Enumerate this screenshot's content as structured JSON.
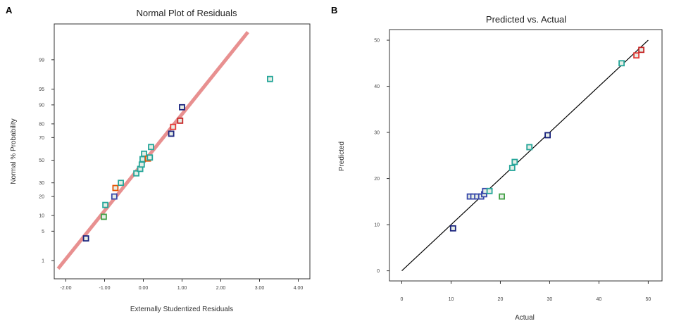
{
  "chart_data": [
    {
      "type": "scatter",
      "panel": "A",
      "title": "Normal Plot of Residuals",
      "xlabel": "Externally Studentized Residuals",
      "ylabel": "Normal % Probability",
      "xlim": [
        -2.0,
        4.0
      ],
      "y_scale": "normal-probability",
      "ylim": [
        0.5,
        99.9
      ],
      "x_ticks": [
        {
          "value": -2,
          "label": "-2.00"
        },
        {
          "value": -1,
          "label": "-1.00"
        },
        {
          "value": 0,
          "label": "0.00"
        },
        {
          "value": 1,
          "label": "1.00"
        },
        {
          "value": 2,
          "label": "2.00"
        },
        {
          "value": 3,
          "label": "3.00"
        },
        {
          "value": 4,
          "label": "4.00"
        }
      ],
      "y_ticks": [
        {
          "value": 1,
          "label": "1"
        },
        {
          "value": 5,
          "label": "5"
        },
        {
          "value": 10,
          "label": "10"
        },
        {
          "value": 20,
          "label": "20"
        },
        {
          "value": 30,
          "label": "30"
        },
        {
          "value": 50,
          "label": "50"
        },
        {
          "value": 70,
          "label": "70"
        },
        {
          "value": 80,
          "label": "80"
        },
        {
          "value": 90,
          "label": "90"
        },
        {
          "value": 95,
          "label": "95"
        },
        {
          "value": 99,
          "label": "99"
        }
      ],
      "reference_line": {
        "points": [
          [
            -2.2,
            0.6
          ],
          [
            2.7,
            99.85
          ]
        ],
        "color": "#e89090"
      },
      "points": [
        {
          "x": -1.48,
          "y": 3.5,
          "color": "#1a237e"
        },
        {
          "x": -1.02,
          "y": 9.5,
          "color": "#43a047"
        },
        {
          "x": -0.98,
          "y": 15,
          "color": "#26a69a"
        },
        {
          "x": -0.75,
          "y": 20,
          "color": "#3949ab"
        },
        {
          "x": -0.72,
          "y": 26,
          "color": "#e65100"
        },
        {
          "x": -0.58,
          "y": 30,
          "color": "#26a69a"
        },
        {
          "x": -0.18,
          "y": 38,
          "color": "#26a69a"
        },
        {
          "x": -0.08,
          "y": 42,
          "color": "#26a69a"
        },
        {
          "x": -0.04,
          "y": 46,
          "color": "#26a69a"
        },
        {
          "x": -0.02,
          "y": 51,
          "color": "#26a69a"
        },
        {
          "x": 0.02,
          "y": 56,
          "color": "#26a69a"
        },
        {
          "x": 0.12,
          "y": 51.5,
          "color": "#e65100"
        },
        {
          "x": 0.17,
          "y": 52.5,
          "color": "#26a69a"
        },
        {
          "x": 0.2,
          "y": 62,
          "color": "#26a69a"
        },
        {
          "x": 0.72,
          "y": 73,
          "color": "#1a237e"
        },
        {
          "x": 0.77,
          "y": 78,
          "color": "#e53935"
        },
        {
          "x": 0.95,
          "y": 82,
          "color": "#c62828"
        },
        {
          "x": 1.0,
          "y": 89,
          "color": "#1a237e"
        },
        {
          "x": 3.27,
          "y": 97,
          "color": "#26a69a"
        }
      ]
    },
    {
      "type": "scatter",
      "panel": "B",
      "title": "Predicted vs. Actual",
      "xlabel": "Actual",
      "ylabel": "Predicted",
      "xlim": [
        0,
        50
      ],
      "ylim": [
        0,
        50
      ],
      "x_ticks": [
        {
          "value": 0,
          "label": "0"
        },
        {
          "value": 10,
          "label": "10"
        },
        {
          "value": 20,
          "label": "20"
        },
        {
          "value": 30,
          "label": "30"
        },
        {
          "value": 40,
          "label": "40"
        },
        {
          "value": 50,
          "label": "50"
        }
      ],
      "y_ticks": [
        {
          "value": 0,
          "label": "0"
        },
        {
          "value": 10,
          "label": "10"
        },
        {
          "value": 20,
          "label": "20"
        },
        {
          "value": 30,
          "label": "30"
        },
        {
          "value": 40,
          "label": "40"
        },
        {
          "value": 50,
          "label": "50"
        }
      ],
      "reference_line": {
        "points": [
          [
            0,
            0
          ],
          [
            50,
            50
          ]
        ],
        "color": "#000000"
      },
      "points": [
        {
          "x": 10.4,
          "y": 9.2,
          "color": "#1a237e"
        },
        {
          "x": 13.8,
          "y": 16.1,
          "color": "#3949ab"
        },
        {
          "x": 14.5,
          "y": 16.1,
          "color": "#3949ab"
        },
        {
          "x": 15.3,
          "y": 16.1,
          "color": "#3949ab"
        },
        {
          "x": 16.1,
          "y": 16.1,
          "color": "#3949ab"
        },
        {
          "x": 16.7,
          "y": 16.6,
          "color": "#3949ab"
        },
        {
          "x": 16.9,
          "y": 17.3,
          "color": "#3949ab"
        },
        {
          "x": 17.8,
          "y": 17.3,
          "color": "#26a69a"
        },
        {
          "x": 20.3,
          "y": 16.1,
          "color": "#43a047"
        },
        {
          "x": 22.4,
          "y": 22.3,
          "color": "#26a69a"
        },
        {
          "x": 22.9,
          "y": 23.6,
          "color": "#26a69a"
        },
        {
          "x": 25.9,
          "y": 26.8,
          "color": "#26a69a"
        },
        {
          "x": 29.6,
          "y": 29.4,
          "color": "#1a237e"
        },
        {
          "x": 44.6,
          "y": 45.0,
          "color": "#26a69a"
        },
        {
          "x": 47.6,
          "y": 46.7,
          "color": "#e53935"
        },
        {
          "x": 48.6,
          "y": 47.9,
          "color": "#c62828"
        }
      ]
    }
  ]
}
